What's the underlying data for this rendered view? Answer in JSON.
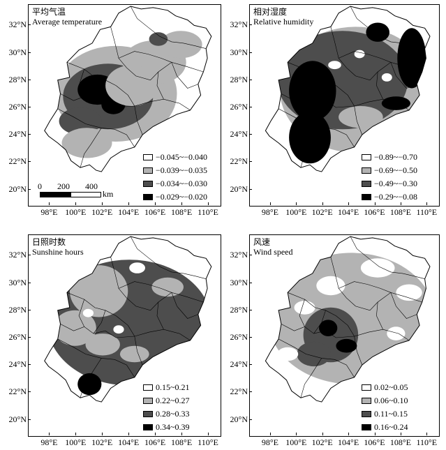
{
  "x_axis_labels": [
    "98°E",
    "100°E",
    "102°E",
    "104°E",
    "106°E",
    "108°E",
    "110°E"
  ],
  "y_axis_labels": [
    "32°N",
    "30°N",
    "28°N",
    "26°N",
    "24°N",
    "22°N",
    "20°N"
  ],
  "colors": {
    "class1": "#ffffff",
    "class2": "#b3b3b3",
    "class3": "#4d4d4d",
    "class4": "#000000"
  },
  "scale_bar": {
    "labels": [
      "0",
      "200",
      "400"
    ],
    "unit": "km"
  },
  "panels": [
    {
      "title_cn": "平均气温",
      "title_en": "Average temperature",
      "legend": [
        "−0.045~−0.040",
        "−0.039~−0.035",
        "−0.034~−0.030",
        "−0.029~−0.020"
      ]
    },
    {
      "title_cn": "相对湿度",
      "title_en": "Relative humidity",
      "legend": [
        "−0.89~−0.70",
        "−0.69~−0.50",
        "−0.49~−0.30",
        "−0.29~−0.08"
      ]
    },
    {
      "title_cn": "日照时数",
      "title_en": "Sunshine hours",
      "legend": [
        "0.15~0.21",
        "0.22~0.27",
        "0.28~0.33",
        "0.34~0.39"
      ]
    },
    {
      "title_cn": "风速",
      "title_en": "Wind speed",
      "legend": [
        "0.02~0.05",
        "0.06~0.10",
        "0.11~0.15",
        "0.16~0.24"
      ]
    }
  ]
}
